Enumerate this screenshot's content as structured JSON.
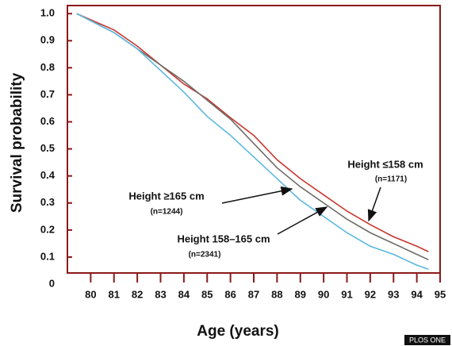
{
  "chart_data": {
    "type": "line",
    "ylabel": "Survival probability",
    "xlabel": "Age (years)",
    "x": [
      79.4,
      81,
      82,
      83,
      84,
      85,
      86,
      87,
      88,
      89,
      90,
      91,
      92,
      93,
      94,
      94.5
    ],
    "series": [
      {
        "name": "Height ≤158 cm",
        "n": "(n=1171)",
        "color": "#c9372f",
        "values": [
          1.0,
          0.94,
          0.88,
          0.81,
          0.74,
          0.685,
          0.615,
          0.55,
          0.46,
          0.39,
          0.33,
          0.27,
          0.22,
          0.175,
          0.14,
          0.12
        ]
      },
      {
        "name": "Height 158–165 cm",
        "n": "(n=2341)",
        "color": "#6e6e68",
        "values": [
          1.0,
          0.93,
          0.87,
          0.81,
          0.75,
          0.68,
          0.61,
          0.52,
          0.43,
          0.36,
          0.3,
          0.24,
          0.19,
          0.15,
          0.11,
          0.09
        ]
      },
      {
        "name": "Height ≥165 cm",
        "n": "(n=1244)",
        "color": "#5cb8e0",
        "values": [
          1.0,
          0.93,
          0.87,
          0.79,
          0.71,
          0.62,
          0.55,
          0.47,
          0.39,
          0.31,
          0.25,
          0.19,
          0.14,
          0.11,
          0.07,
          0.055
        ]
      }
    ],
    "xlim": [
      79,
      95
    ],
    "xticks": [
      80,
      81,
      82,
      83,
      84,
      85,
      86,
      87,
      88,
      89,
      90,
      91,
      92,
      93,
      94,
      95
    ],
    "ylim": [
      0,
      1.03
    ],
    "yticks": [
      0,
      0.1,
      0.2,
      0.3,
      0.4,
      0.5,
      0.6,
      0.7,
      0.8,
      0.9,
      {
        "value": 1,
        "label": "1.0"
      }
    ],
    "source": "PLOS ONE"
  }
}
